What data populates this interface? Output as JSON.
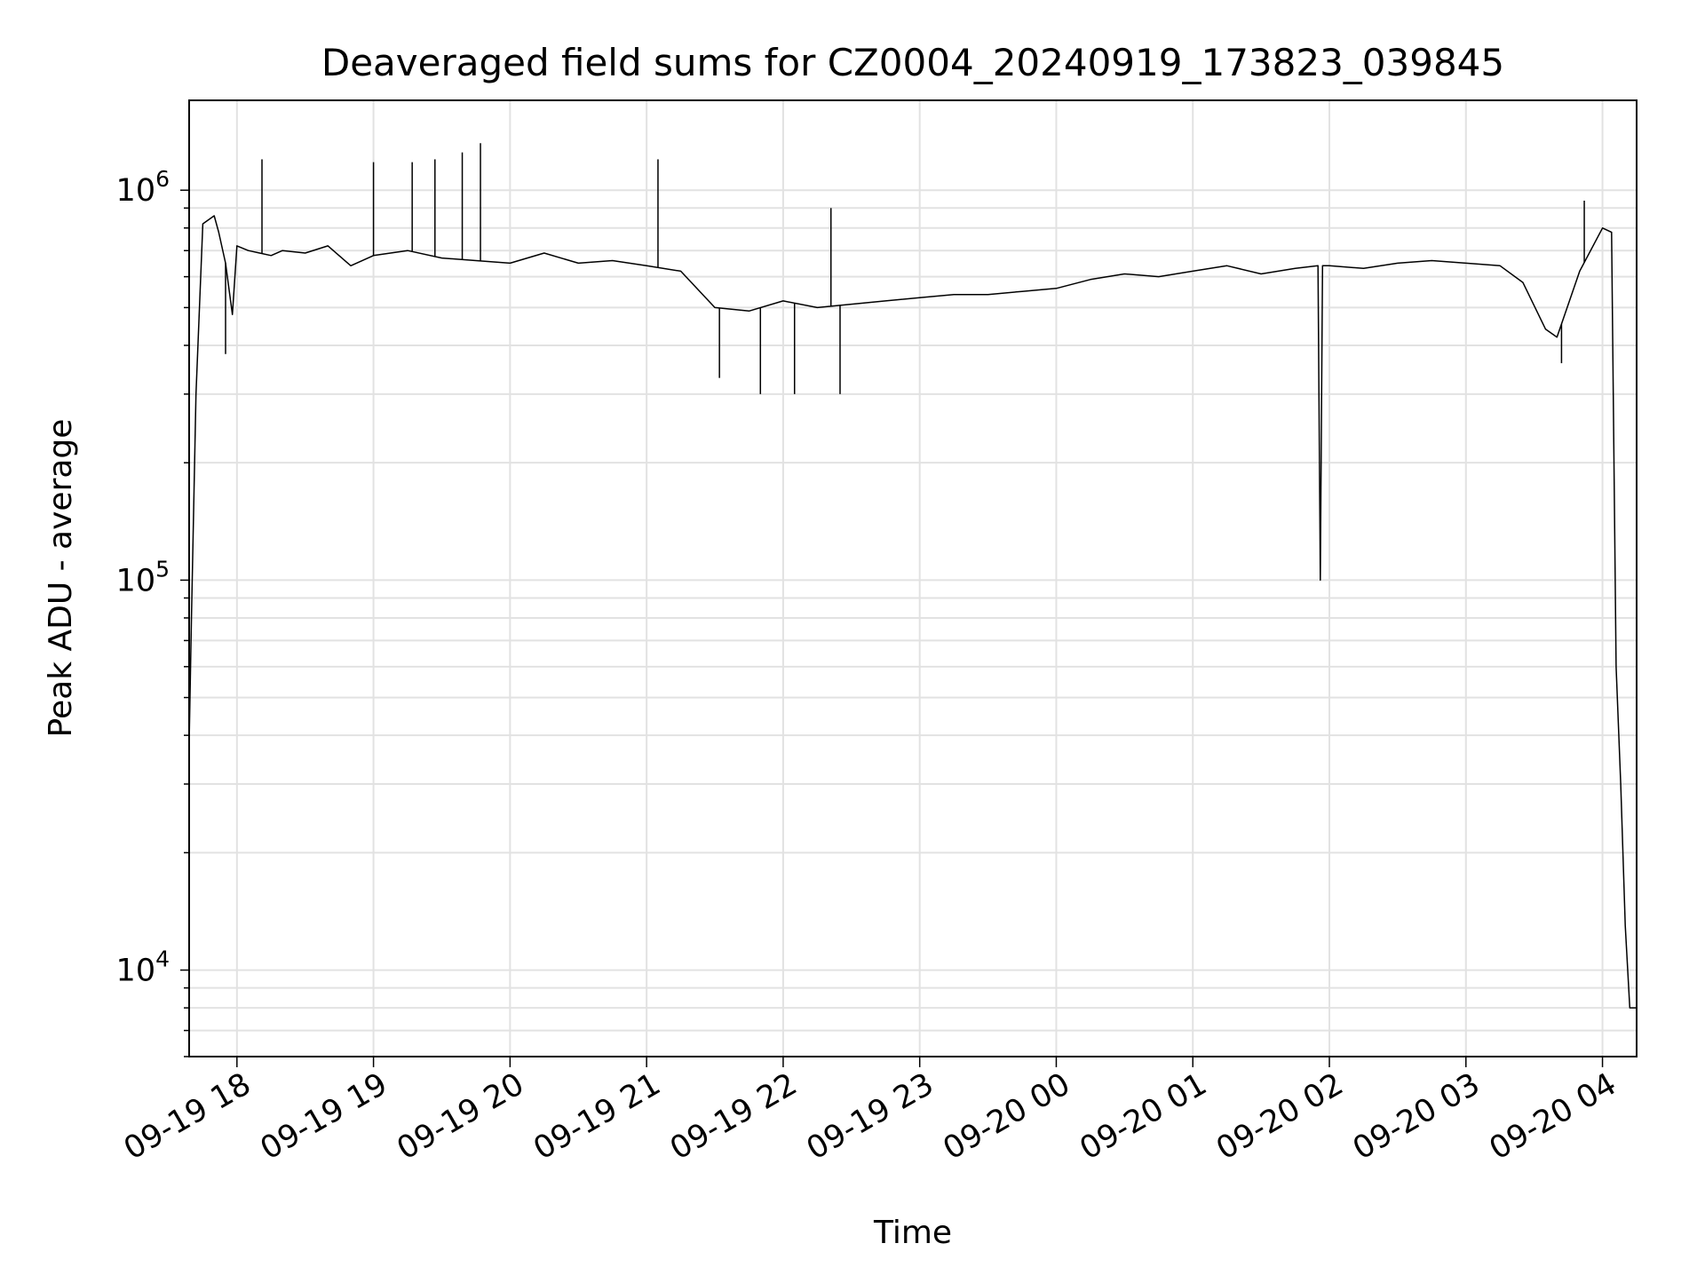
{
  "chart_data": {
    "type": "line",
    "title": "Deaveraged field sums for CZ0004_20240919_173823_039845",
    "xlabel": "Time",
    "ylabel": "Peak ADU - average",
    "yscale": "log",
    "ylim": [
      6000,
      1700000
    ],
    "xlim": [
      "2024-09-19 17:39",
      "2024-09-20 04:15"
    ],
    "grid": true,
    "legend": "none",
    "line_color": "#000000",
    "x_ticks": [
      {
        "label": "09-19 18",
        "time": "2024-09-19 18:00"
      },
      {
        "label": "09-19 19",
        "time": "2024-09-19 19:00"
      },
      {
        "label": "09-19 20",
        "time": "2024-09-19 20:00"
      },
      {
        "label": "09-19 21",
        "time": "2024-09-19 21:00"
      },
      {
        "label": "09-19 22",
        "time": "2024-09-19 22:00"
      },
      {
        "label": "09-19 23",
        "time": "2024-09-19 23:00"
      },
      {
        "label": "09-20 00",
        "time": "2024-09-20 00:00"
      },
      {
        "label": "09-20 01",
        "time": "2024-09-20 01:00"
      },
      {
        "label": "09-20 02",
        "time": "2024-09-20 02:00"
      },
      {
        "label": "09-20 03",
        "time": "2024-09-20 03:00"
      },
      {
        "label": "09-20 04",
        "time": "2024-09-20 04:00"
      }
    ],
    "y_ticks": [
      {
        "base": "10",
        "exp": "4",
        "value": 10000
      },
      {
        "base": "10",
        "exp": "5",
        "value": 100000
      },
      {
        "base": "10",
        "exp": "6",
        "value": 1000000
      }
    ],
    "series": [
      {
        "x": [
          "2024-09-19 17:39",
          "2024-09-19 17:40",
          "2024-09-19 17:42",
          "2024-09-19 17:45",
          "2024-09-19 17:50",
          "2024-09-19 17:52",
          "2024-09-19 17:55",
          "2024-09-19 17:58",
          "2024-09-19 18:00",
          "2024-09-19 18:05",
          "2024-09-19 18:10",
          "2024-09-19 18:15",
          "2024-09-19 18:20",
          "2024-09-19 18:30",
          "2024-09-19 18:40",
          "2024-09-19 18:50",
          "2024-09-19 19:00",
          "2024-09-19 19:15",
          "2024-09-19 19:30",
          "2024-09-19 19:45",
          "2024-09-19 20:00",
          "2024-09-19 20:15",
          "2024-09-19 20:30",
          "2024-09-19 20:45",
          "2024-09-19 21:00",
          "2024-09-19 21:15",
          "2024-09-19 21:30",
          "2024-09-19 21:45",
          "2024-09-19 22:00",
          "2024-09-19 22:15",
          "2024-09-19 22:30",
          "2024-09-19 22:45",
          "2024-09-19 23:00",
          "2024-09-19 23:15",
          "2024-09-19 23:30",
          "2024-09-19 23:45",
          "2024-09-20 00:00",
          "2024-09-20 00:15",
          "2024-09-20 00:30",
          "2024-09-20 00:45",
          "2024-09-20 01:00",
          "2024-09-20 01:15",
          "2024-09-20 01:30",
          "2024-09-20 01:45",
          "2024-09-20 01:55",
          "2024-09-20 01:56",
          "2024-09-20 01:57",
          "2024-09-20 02:00",
          "2024-09-20 02:15",
          "2024-09-20 02:30",
          "2024-09-20 02:45",
          "2024-09-20 03:00",
          "2024-09-20 03:15",
          "2024-09-20 03:25",
          "2024-09-20 03:35",
          "2024-09-20 03:40",
          "2024-09-20 03:50",
          "2024-09-20 04:00",
          "2024-09-20 04:04",
          "2024-09-20 04:06",
          "2024-09-20 04:08",
          "2024-09-20 04:10",
          "2024-09-20 04:12",
          "2024-09-20 04:14",
          "2024-09-20 04:15"
        ],
        "y": [
          38000,
          80000,
          300000,
          820000,
          860000,
          780000,
          650000,
          480000,
          720000,
          700000,
          690000,
          680000,
          700000,
          690000,
          720000,
          640000,
          680000,
          700000,
          670000,
          660000,
          650000,
          690000,
          650000,
          660000,
          640000,
          620000,
          500000,
          490000,
          520000,
          500000,
          510000,
          520000,
          530000,
          540000,
          540000,
          550000,
          560000,
          590000,
          610000,
          600000,
          620000,
          640000,
          610000,
          630000,
          640000,
          100000,
          640000,
          640000,
          630000,
          650000,
          660000,
          650000,
          640000,
          580000,
          440000,
          420000,
          620000,
          800000,
          780000,
          60000,
          30000,
          13000,
          8000,
          8000,
          8000
        ]
      }
    ],
    "spikes": [
      {
        "x": "2024-09-19 18:11",
        "y": 1200000
      },
      {
        "x": "2024-09-19 19:00",
        "y": 1180000
      },
      {
        "x": "2024-09-19 19:17",
        "y": 1180000
      },
      {
        "x": "2024-09-19 19:27",
        "y": 1200000
      },
      {
        "x": "2024-09-19 19:39",
        "y": 1250000
      },
      {
        "x": "2024-09-19 19:47",
        "y": 1320000
      },
      {
        "x": "2024-09-19 21:05",
        "y": 1200000
      },
      {
        "x": "2024-09-19 22:21",
        "y": 900000
      },
      {
        "x": "2024-09-20 03:52",
        "y": 940000
      },
      {
        "x": "2024-09-19 17:55",
        "y": 380000
      },
      {
        "x": "2024-09-19 21:32",
        "y": 330000
      },
      {
        "x": "2024-09-19 21:50",
        "y": 300000
      },
      {
        "x": "2024-09-19 22:05",
        "y": 300000
      },
      {
        "x": "2024-09-19 22:25",
        "y": 300000
      },
      {
        "x": "2024-09-20 03:42",
        "y": 360000
      }
    ]
  }
}
